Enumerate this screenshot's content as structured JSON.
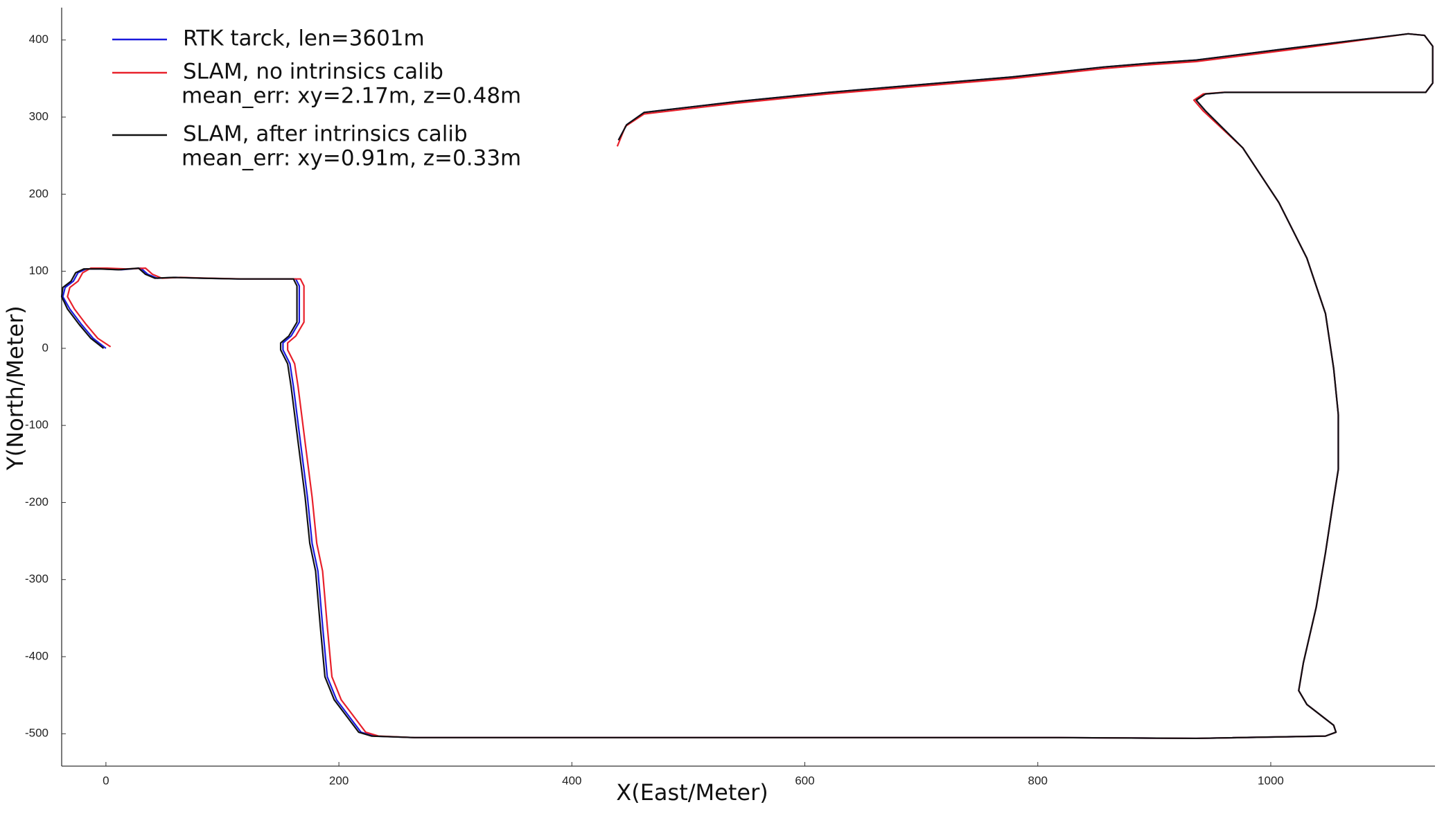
{
  "chart_data": {
    "type": "line",
    "xlabel": "X(East/Meter)",
    "ylabel": "Y(North/Meter)",
    "xlim": [
      -38,
      1141
    ],
    "ylim": [
      -542,
      442
    ],
    "xticks": [
      0,
      200,
      400,
      600,
      800,
      1000
    ],
    "yticks": [
      -500,
      -400,
      -300,
      -200,
      -100,
      0,
      100,
      200,
      300,
      400
    ],
    "series": [
      {
        "name": "RTK tarck, len=3601m",
        "color": "#1a1adc",
        "x": [
          0,
          -11,
          -21,
          -31,
          -37,
          -35,
          -28,
          -24,
          -17,
          -3,
          13,
          30,
          36,
          44,
          60,
          84,
          115,
          163,
          166,
          166,
          159,
          152,
          152,
          158,
          161,
          167,
          173,
          177,
          182,
          186,
          190,
          198,
          210,
          219,
          230,
          265,
          384,
          620,
          818,
          936,
          1047,
          1056,
          1054,
          1031,
          1024,
          1028,
          1039,
          1047,
          1053,
          1058,
          1058,
          1054,
          1047,
          1031,
          1007,
          976,
          944,
          936,
          944,
          960,
          1015,
          1133,
          1139,
          1139,
          1132,
          1118,
          1015,
          936,
          897,
          857,
          778,
          620,
          541,
          462,
          447,
          440
        ],
        "values": [
          0,
          13,
          31,
          51,
          67,
          79,
          87,
          98,
          103,
          103,
          102,
          104,
          96,
          91,
          92,
          91,
          90,
          90,
          81,
          34,
          16,
          7,
          -2,
          -20,
          -50,
          -122,
          -193,
          -253,
          -289,
          -360,
          -426,
          -456,
          -480,
          -498,
          -503,
          -505,
          -505,
          -505,
          -505,
          -506,
          -503,
          -498,
          -489,
          -462,
          -444,
          -408,
          -336,
          -265,
          -205,
          -157,
          -86,
          -26,
          45,
          117,
          189,
          260,
          308,
          322,
          330,
          332,
          332,
          332,
          344,
          392,
          406,
          408,
          389,
          374,
          370,
          365,
          352,
          332,
          320,
          306,
          290,
          270
        ]
      },
      {
        "name": "SLAM, no intrinsics calib",
        "note": "mean_err: xy=2.17m, z=0.48m",
        "color": "#e8202a",
        "x": [
          4,
          -7,
          -17,
          -27,
          -33,
          -31,
          -24,
          -20,
          -13,
          1,
          17,
          34,
          40,
          48,
          64,
          88,
          119,
          167,
          170,
          170,
          163,
          156,
          156,
          162,
          165,
          171,
          177,
          181,
          186,
          190,
          194,
          202,
          214,
          223,
          234,
          265,
          384,
          620,
          818,
          936,
          1047,
          1056,
          1054,
          1031,
          1024,
          1028,
          1039,
          1047,
          1053,
          1058,
          1058,
          1054,
          1047,
          1031,
          1007,
          976,
          942,
          934,
          942,
          958,
          1015,
          1133,
          1139,
          1139,
          1132,
          1118,
          1015,
          936,
          897,
          857,
          778,
          620,
          541,
          462,
          446,
          439
        ],
        "values": [
          2,
          13,
          31,
          51,
          67,
          79,
          87,
          98,
          104,
          104,
          103,
          104,
          96,
          91,
          92,
          91,
          90,
          90,
          81,
          34,
          16,
          7,
          -2,
          -20,
          -50,
          -122,
          -193,
          -253,
          -289,
          -360,
          -426,
          -456,
          -480,
          -498,
          -503,
          -505,
          -505,
          -505,
          -505,
          -506,
          -503,
          -498,
          -489,
          -462,
          -444,
          -408,
          -336,
          -265,
          -205,
          -157,
          -86,
          -26,
          45,
          117,
          189,
          260,
          308,
          322,
          330,
          332,
          332,
          332,
          344,
          392,
          406,
          408,
          387,
          372,
          368,
          363,
          350,
          330,
          318,
          304,
          288,
          262
        ]
      },
      {
        "name": "SLAM, after intrinsics calib",
        "note": "mean_err: xy=0.91m, z=0.33m",
        "color": "#111111",
        "x": [
          -2,
          -13,
          -23,
          -33,
          -38,
          -37,
          -30,
          -26,
          -19,
          -5,
          11,
          28,
          34,
          42,
          58,
          82,
          113,
          161,
          164,
          164,
          157,
          150,
          150,
          156,
          159,
          165,
          171,
          175,
          180,
          184,
          188,
          196,
          208,
          217,
          228,
          265,
          384,
          620,
          818,
          936,
          1047,
          1056,
          1054,
          1031,
          1024,
          1028,
          1039,
          1047,
          1053,
          1058,
          1058,
          1054,
          1047,
          1031,
          1007,
          976,
          944,
          936,
          944,
          960,
          1015,
          1133,
          1139,
          1139,
          1132,
          1118,
          1015,
          936,
          897,
          857,
          778,
          620,
          541,
          462,
          447,
          440
        ],
        "values": [
          0,
          13,
          31,
          51,
          67,
          79,
          87,
          98,
          103,
          103,
          102,
          104,
          96,
          91,
          92,
          91,
          90,
          90,
          81,
          34,
          16,
          7,
          -2,
          -20,
          -50,
          -122,
          -193,
          -253,
          -289,
          -360,
          -426,
          -456,
          -480,
          -498,
          -503,
          -505,
          -505,
          -505,
          -505,
          -506,
          -503,
          -498,
          -489,
          -462,
          -444,
          -408,
          -336,
          -265,
          -205,
          -157,
          -86,
          -26,
          45,
          117,
          189,
          260,
          308,
          322,
          330,
          332,
          332,
          332,
          344,
          392,
          406,
          408,
          389,
          374,
          370,
          365,
          352,
          332,
          320,
          306,
          290,
          270
        ]
      }
    ]
  }
}
